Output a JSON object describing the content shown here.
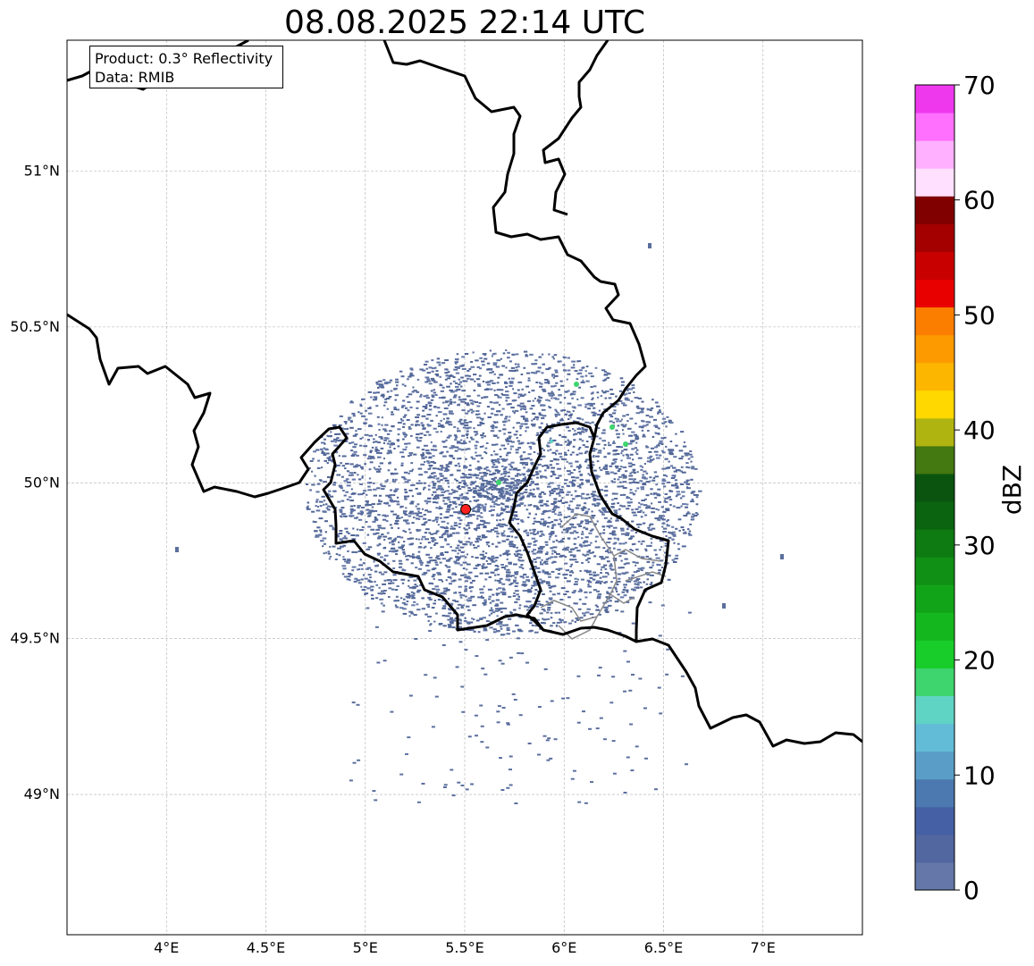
{
  "title": "08.08.2025 22:14 UTC",
  "info": {
    "line1": "Product: 0.3° Reflectivity",
    "line2": "Data: RMIB"
  },
  "map": {
    "lon_range": [
      3.5,
      7.5
    ],
    "lat_range": [
      48.55,
      51.42
    ],
    "lon_ticks": [
      {
        "v": 4,
        "label": "4°E"
      },
      {
        "v": 4.5,
        "label": "4.5°E"
      },
      {
        "v": 5,
        "label": "5°E"
      },
      {
        "v": 5.5,
        "label": "5.5°E"
      },
      {
        "v": 6,
        "label": "6°E"
      },
      {
        "v": 6.5,
        "label": "6.5°E"
      },
      {
        "v": 7,
        "label": "7°E"
      }
    ],
    "lat_ticks": [
      {
        "v": 49,
        "label": "49°N"
      },
      {
        "v": 49.5,
        "label": "49.5°N"
      },
      {
        "v": 50,
        "label": "50°N"
      },
      {
        "v": 50.5,
        "label": "50.5°N"
      },
      {
        "v": 51,
        "label": "51°N"
      }
    ],
    "gridlines": true,
    "radar_site": {
      "lon": 5.505,
      "lat": 49.915,
      "color": "#ff2020"
    },
    "echo_color": "#5b6f9e"
  },
  "colorbar": {
    "label": "dBZ",
    "min": 0,
    "max": 70,
    "step": 2.5,
    "ticks": [
      "0",
      "10",
      "20",
      "30",
      "40",
      "50",
      "60",
      "70"
    ],
    "colors": [
      "#6577a8",
      "#5266a0",
      "#4560a4",
      "#4c79b0",
      "#5a9ec8",
      "#62bcd8",
      "#60d4c4",
      "#3ed46e",
      "#18cc2a",
      "#14b81e",
      "#12a418",
      "#109014",
      "#0e7a12",
      "#0a6410",
      "#0a5410",
      "#447810",
      "#b0b410",
      "#ffd800",
      "#fcb600",
      "#fc9a00",
      "#fc7e00",
      "#e80000",
      "#c80000",
      "#a40000",
      "#800000",
      "#ffe0ff",
      "#ffb0ff",
      "#ff70ff",
      "#ee38ee"
    ]
  }
}
